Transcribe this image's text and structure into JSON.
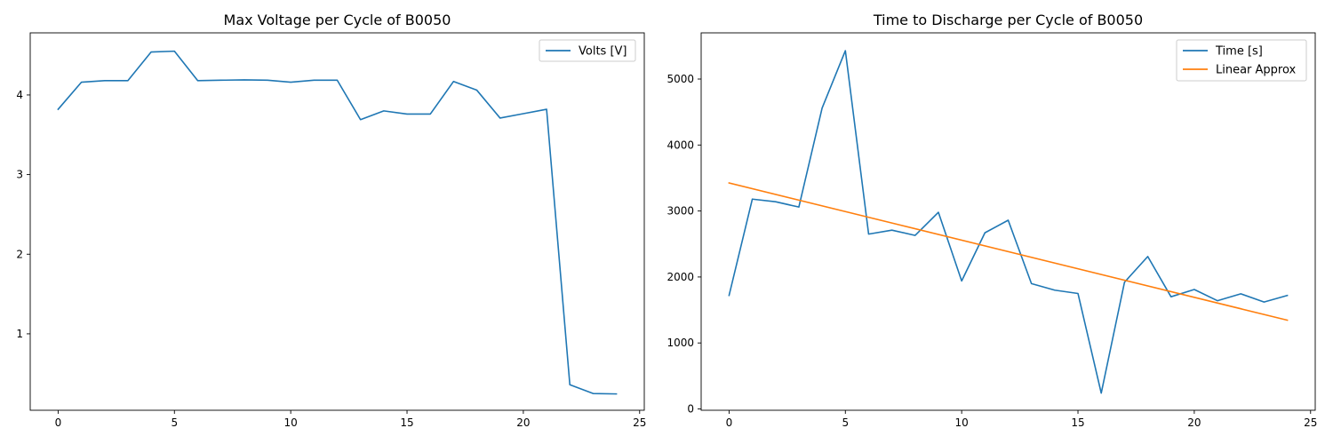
{
  "chart_data": [
    {
      "type": "line",
      "title": "Max Voltage per Cycle of B0050",
      "xlabel": "",
      "ylabel": "",
      "xlim": [
        -1.2,
        25.2
      ],
      "ylim": [
        0.04,
        4.78
      ],
      "xticks": [
        0,
        5,
        10,
        15,
        20,
        25
      ],
      "yticks": [
        1,
        2,
        3,
        4
      ],
      "grid": false,
      "legend_position": "upper right",
      "series": [
        {
          "name": "Volts [V]",
          "color": "#1f77b4",
          "x": [
            0,
            1,
            2,
            3,
            4,
            5,
            6,
            7,
            8,
            9,
            10,
            11,
            12,
            13,
            14,
            15,
            16,
            17,
            18,
            19,
            20,
            21,
            22,
            23,
            24
          ],
          "y": [
            3.82,
            4.16,
            4.18,
            4.18,
            4.54,
            4.55,
            4.18,
            4.185,
            4.19,
            4.185,
            4.16,
            4.185,
            4.185,
            3.69,
            3.8,
            3.76,
            3.76,
            4.17,
            4.06,
            3.71,
            3.765,
            3.82,
            0.36,
            0.25,
            0.245
          ]
        }
      ]
    },
    {
      "type": "line",
      "title": "Time to Discharge per Cycle of B0050",
      "xlabel": "",
      "ylabel": "",
      "xlim": [
        -1.2,
        25.2
      ],
      "ylim": [
        -20,
        5700
      ],
      "xticks": [
        0,
        5,
        10,
        15,
        20,
        25
      ],
      "yticks": [
        0,
        1000,
        2000,
        3000,
        4000,
        5000
      ],
      "grid": false,
      "legend_position": "upper right",
      "series": [
        {
          "name": "Time [s]",
          "color": "#1f77b4",
          "x": [
            0,
            1,
            2,
            3,
            4,
            5,
            6,
            7,
            8,
            9,
            10,
            11,
            12,
            13,
            14,
            15,
            16,
            17,
            18,
            19,
            20,
            21,
            22,
            23,
            24
          ],
          "y": [
            1720,
            3180,
            3140,
            3060,
            4560,
            5430,
            2650,
            2710,
            2630,
            2980,
            1940,
            2670,
            2860,
            1900,
            1800,
            1750,
            240,
            1920,
            2310,
            1700,
            1810,
            1640,
            1745,
            1620,
            1720
          ]
        },
        {
          "name": "Linear Approx",
          "color": "#ff7f0e",
          "x": [
            0,
            24
          ],
          "y": [
            3425,
            1345
          ]
        }
      ]
    }
  ]
}
